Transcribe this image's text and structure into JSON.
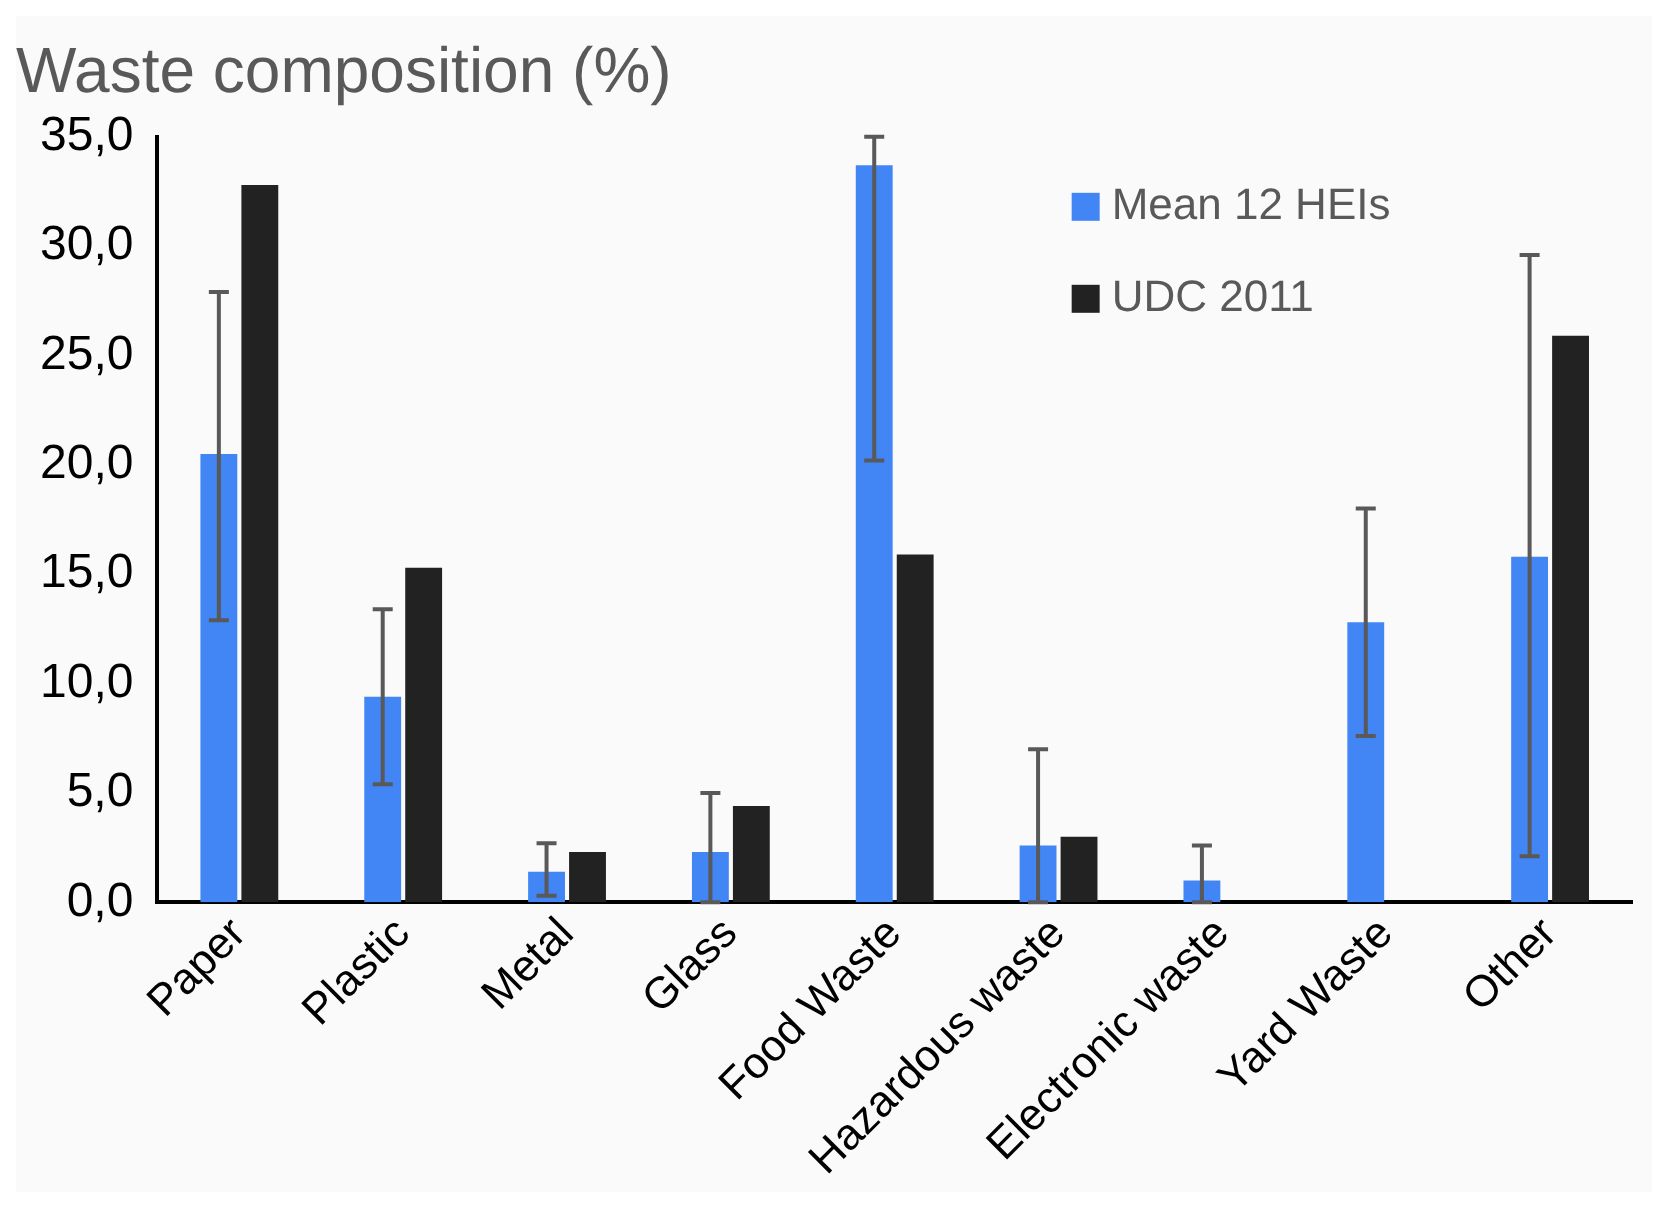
{
  "chart_data": {
    "type": "bar",
    "title": "Waste composition (%)",
    "categories": [
      "Paper",
      "Plastic",
      "Metal",
      "Glass",
      "Food Waste",
      "Hazardous waste",
      "Electronic waste",
      "Yard Waste",
      "Other"
    ],
    "series": [
      {
        "name": "Mean 12 HEIs",
        "color": "#4285f4",
        "values": [
          20.5,
          9.4,
          1.4,
          2.3,
          33.7,
          2.6,
          1.0,
          12.8,
          15.8
        ],
        "errors": [
          [
            12.9,
            27.9
          ],
          [
            5.4,
            13.4
          ],
          [
            0.3,
            2.7
          ],
          [
            0,
            5.0
          ],
          [
            20.2,
            35
          ],
          [
            0,
            7.0
          ],
          [
            0,
            2.6
          ],
          [
            7.6,
            18.0
          ],
          [
            2.1,
            29.6
          ]
        ]
      },
      {
        "name": "UDC 2011",
        "color": "#222222",
        "values": [
          32.8,
          15.3,
          2.3,
          4.4,
          15.9,
          3.0,
          null,
          null,
          25.9
        ]
      }
    ],
    "ylim": [
      0,
      35
    ],
    "yticks": [
      {
        "value": 0,
        "label": "0,0"
      },
      {
        "value": 5,
        "label": "5,0"
      },
      {
        "value": 10,
        "label": "10,0"
      },
      {
        "value": 15,
        "label": "15,0"
      },
      {
        "value": 20,
        "label": "20,0"
      },
      {
        "value": 25,
        "label": "25,0"
      },
      {
        "value": 30,
        "label": "30,0"
      },
      {
        "value": 35,
        "label": "35,0"
      }
    ],
    "grid": false,
    "legend": "top right"
  }
}
